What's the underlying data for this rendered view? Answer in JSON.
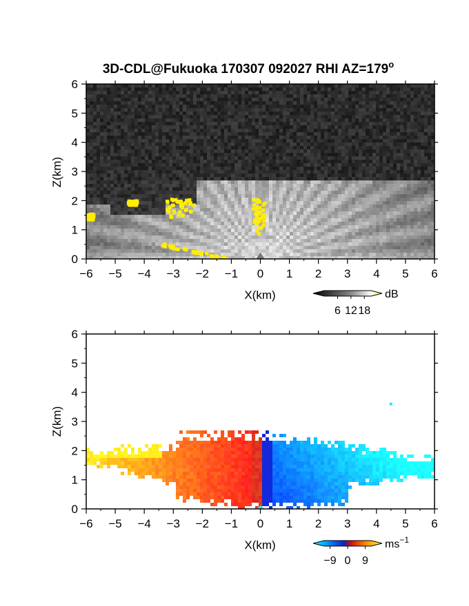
{
  "chart_data": [
    {
      "type": "heatmap",
      "title": "3D-CDL@Fukuoka 170307 092027 RHI AZ=179",
      "title_superscript": "o",
      "xlabel": "X(km)",
      "ylabel": "Z(km)",
      "xlim": [
        -6,
        6
      ],
      "ylim": [
        0,
        6
      ],
      "x_ticks": [
        "-6",
        "-5",
        "-4",
        "-3",
        "-2",
        "-1",
        "0",
        "1",
        "2",
        "3",
        "4",
        "5",
        "6"
      ],
      "y_ticks": [
        "0",
        "1",
        "2",
        "3",
        "4",
        "5",
        "6"
      ],
      "quantity": "backscatter intensity",
      "colorbar": {
        "unit": "dB",
        "ticks": [
          6,
          12,
          18
        ],
        "tick_labels": [
          "6",
          "12",
          "18"
        ],
        "range": [
          0,
          21
        ]
      },
      "echo_region": {
        "x_range": [
          -6,
          6
        ],
        "top_km": 2.7,
        "description_colors": [
          "#2a2a2a",
          "#ffffff",
          "#ffee00"
        ]
      },
      "saturated_patches": [
        {
          "x": [
            -6.0,
            -5.8
          ],
          "z": [
            1.4,
            1.6
          ]
        },
        {
          "x": [
            -4.6,
            -4.3
          ],
          "z": [
            1.9,
            2.05
          ]
        },
        {
          "x": [
            -3.3,
            -2.2
          ],
          "z": [
            1.45,
            2.1
          ]
        },
        {
          "x": [
            -0.3,
            0.1
          ],
          "z": [
            0.9,
            2.1
          ]
        },
        {
          "x": [
            -3.5,
            -1.0
          ],
          "z": [
            0.0,
            0.55
          ]
        }
      ]
    },
    {
      "type": "heatmap",
      "title": "",
      "xlabel": "X(km)",
      "ylabel": "Z(km)",
      "xlim": [
        -6,
        6
      ],
      "ylim": [
        0,
        6
      ],
      "x_ticks": [
        "-6",
        "-5",
        "-4",
        "-3",
        "-2",
        "-1",
        "0",
        "1",
        "2",
        "3",
        "4",
        "5",
        "6"
      ],
      "y_ticks": [
        "0",
        "1",
        "2",
        "3",
        "4",
        "5",
        "6"
      ],
      "quantity": "radial velocity",
      "colorbar": {
        "unit": "ms",
        "unit_superscript": "−1",
        "ticks": [
          -9,
          0,
          9
        ],
        "tick_labels": [
          "−9",
          "0",
          "9"
        ],
        "range": [
          -12,
          12
        ]
      },
      "velocity_regions": [
        {
          "x_range": [
            -6,
            0
          ],
          "velocity_ms": 6,
          "sign": "positive"
        },
        {
          "x_range": [
            0,
            6
          ],
          "velocity_ms": -6,
          "sign": "negative"
        }
      ],
      "isolated_point": {
        "x": 4.5,
        "z": 3.6
      }
    }
  ]
}
